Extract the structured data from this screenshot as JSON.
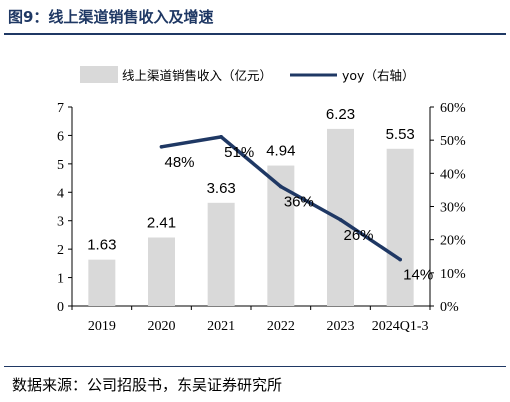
{
  "figure": {
    "title": "图9：线上渠道销售收入及增速",
    "source": "数据来源：公司招股书，东吴证券研究所"
  },
  "colors": {
    "title": "#1f3864",
    "bar": "#d9d9d9",
    "line": "#1f3864",
    "axis": "#000000"
  },
  "chart_data": {
    "type": "bar",
    "categories": [
      "2019",
      "2020",
      "2021",
      "2022",
      "2023",
      "2024Q1-3"
    ],
    "series": [
      {
        "name": "线上渠道销售收入（亿元）",
        "type": "bar",
        "axis": "left",
        "values": [
          1.63,
          2.41,
          3.63,
          4.94,
          6.23,
          5.53
        ],
        "labels": [
          "1.63",
          "2.41",
          "3.63",
          "4.94",
          "6.23",
          "5.53"
        ]
      },
      {
        "name": "yoy（右轴）",
        "type": "line",
        "axis": "right",
        "values": [
          null,
          48,
          51,
          36,
          26,
          14
        ],
        "labels": [
          "",
          "48%",
          "51%",
          "36%",
          "26%",
          "14%"
        ]
      }
    ],
    "y_left": {
      "lim": [
        0,
        7
      ],
      "ticks": [
        "0",
        "1",
        "2",
        "3",
        "4",
        "5",
        "6",
        "7"
      ]
    },
    "y_right": {
      "lim": [
        0,
        60
      ],
      "ticks": [
        "0%",
        "10%",
        "20%",
        "30%",
        "40%",
        "50%",
        "60%"
      ]
    },
    "grid": false,
    "legend": "top"
  }
}
